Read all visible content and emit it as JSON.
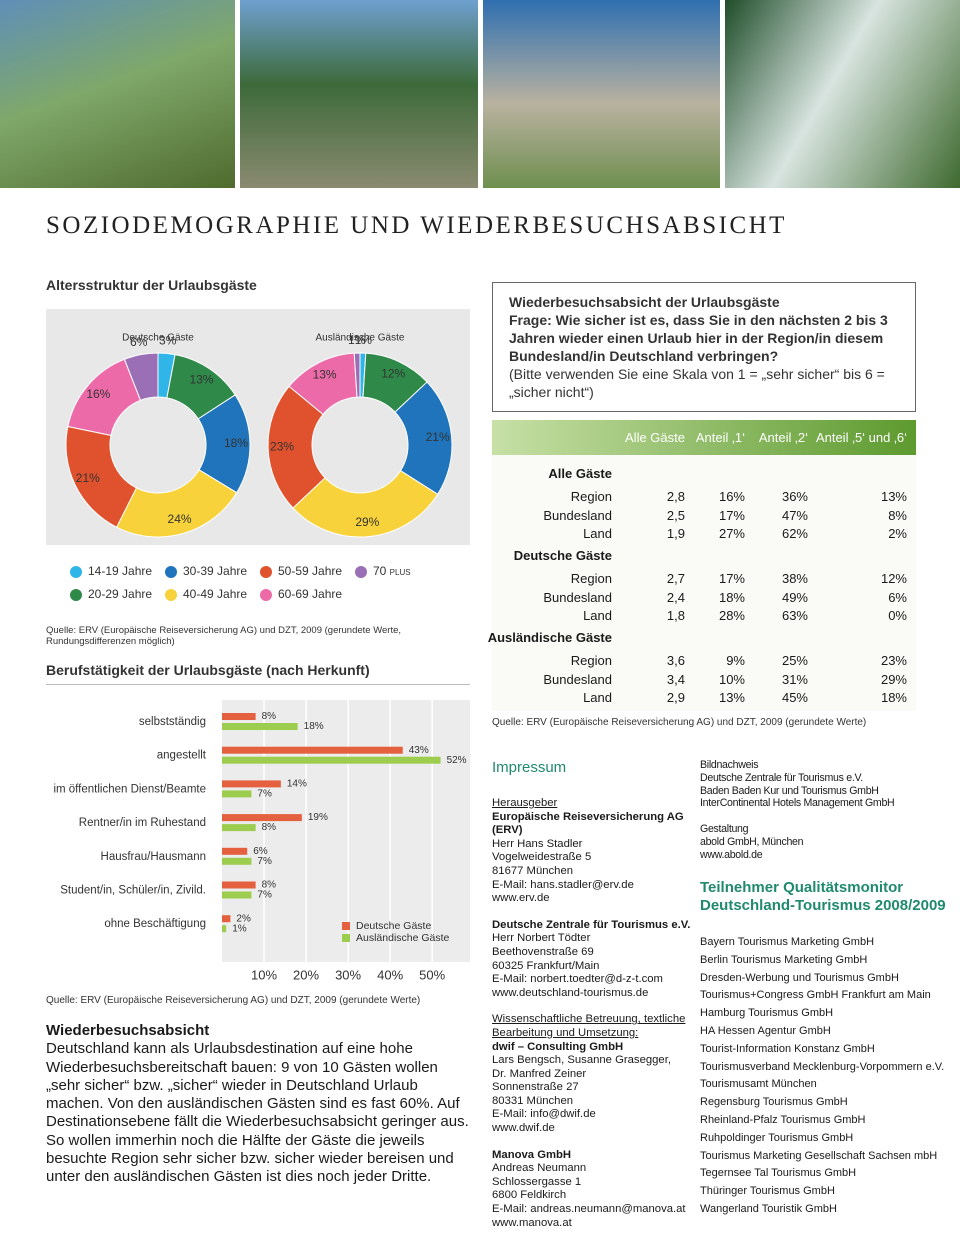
{
  "page_title": "SOZIODEMOGRAPHIE UND WIEDERBESUCHSABSICHT",
  "age_structure": {
    "title": "Altersstruktur der Urlaubsgäste",
    "source": "Quelle: ERV (Europäische Reiseversicherung AG) und DZT, 2009 (gerundete Werte, Rundungsdifferenzen möglich)"
  },
  "occupation": {
    "title": "Berufstätigkeit der Urlaubsgäste (nach Herkunft)",
    "source": "Quelle: ERV (Europäische Reiseversicherung AG) und DZT, 2009 (gerundete Werte)"
  },
  "chart_data": [
    {
      "type": "pie",
      "donut": true,
      "title": "Deutsche Gäste",
      "categories": [
        "14-19 Jahre",
        "20-29 Jahre",
        "30-39 Jahre",
        "40-49 Jahre",
        "50-59 Jahre",
        "60-69 Jahre",
        "70 plus"
      ],
      "colors": [
        "#2fb5e8",
        "#2f8a4a",
        "#1f74bb",
        "#f7d23a",
        "#e0522d",
        "#ec6aa8",
        "#9a6fb5"
      ],
      "values": [
        3,
        13,
        18,
        24,
        21,
        16,
        6
      ],
      "value_labels": [
        "3%",
        "13%",
        "18%",
        "24%",
        "21%",
        "16%",
        "6%"
      ]
    },
    {
      "type": "pie",
      "donut": true,
      "title": "Ausländische Gäste",
      "categories": [
        "14-19 Jahre",
        "20-29 Jahre",
        "30-39 Jahre",
        "40-49 Jahre",
        "50-59 Jahre",
        "60-69 Jahre",
        "70 plus"
      ],
      "colors": [
        "#2fb5e8",
        "#2f8a4a",
        "#1f74bb",
        "#f7d23a",
        "#e0522d",
        "#ec6aa8",
        "#9a6fb5"
      ],
      "values": [
        1,
        12,
        21,
        29,
        23,
        13,
        1
      ],
      "value_labels": [
        "1%",
        "12%",
        "21%",
        "29%",
        "23%",
        "13%",
        "1%"
      ]
    },
    {
      "type": "bar",
      "orientation": "horizontal",
      "categories": [
        "selbstständig",
        "angestellt",
        "im öffentlichen Dienst/Beamte",
        "Rentner/in im Ruhestand",
        "Hausfrau/Hausmann",
        "Student/in, Schüler/in, Zivild.",
        "ohne Beschäftigung"
      ],
      "series": [
        {
          "name": "Deutsche Gäste",
          "color": "#e5603f",
          "values": [
            8,
            43,
            14,
            19,
            6,
            8,
            2
          ],
          "value_labels": [
            "8%",
            "43%",
            "14%",
            "19%",
            "6%",
            "8%",
            "2%"
          ]
        },
        {
          "name": "Ausländische Gäste",
          "color": "#9ccd4f",
          "values": [
            18,
            52,
            7,
            8,
            7,
            7,
            1
          ],
          "value_labels": [
            "18%",
            "52%",
            "7%",
            "8%",
            "7%",
            "7%",
            "1%"
          ]
        }
      ],
      "xlim": [
        0,
        59
      ],
      "xticks": [
        {
          "value": 10,
          "label": "10%"
        },
        {
          "value": 20,
          "label": "20%"
        },
        {
          "value": 30,
          "label": "30%"
        },
        {
          "value": 40,
          "label": "40%"
        },
        {
          "value": 50,
          "label": "50%"
        }
      ],
      "grid": true
    }
  ],
  "revisit": {
    "title": "Wiederbesuchsabsicht der Urlaubsgäste",
    "question": "Frage: Wie sicher ist es, dass Sie in den nächsten 2 bis 3 Jahren wieder einen Urlaub hier in der Region/in diesem Bundesland/in Deutschland verbringen?",
    "note": "(Bitte verwenden Sie eine Skala von 1 = „sehr sicher“ bis 6 = „sicher nicht“)",
    "columns": [
      "Alle Gäste",
      "Anteil ‚1‘",
      "Anteil ‚2‘",
      "Anteil ‚5‘ und ‚6‘"
    ],
    "groups": [
      {
        "name": "Alle Gäste",
        "rows": [
          [
            "Region",
            "2,8",
            "16%",
            "36%",
            "13%"
          ],
          [
            "Bundesland",
            "2,5",
            "17%",
            "47%",
            "8%"
          ],
          [
            "Land",
            "1,9",
            "27%",
            "62%",
            "2%"
          ]
        ]
      },
      {
        "name": "Deutsche Gäste",
        "rows": [
          [
            "Region",
            "2,7",
            "17%",
            "38%",
            "12%"
          ],
          [
            "Bundesland",
            "2,4",
            "18%",
            "49%",
            "6%"
          ],
          [
            "Land",
            "1,8",
            "28%",
            "63%",
            "0%"
          ]
        ]
      },
      {
        "name": "Ausländische Gäste",
        "rows": [
          [
            "Region",
            "3,6",
            "9%",
            "25%",
            "23%"
          ],
          [
            "Bundesland",
            "3,4",
            "10%",
            "31%",
            "29%"
          ],
          [
            "Land",
            "2,9",
            "13%",
            "45%",
            "18%"
          ]
        ]
      }
    ],
    "source": "Quelle: ERV (Europäische Reiseversicherung AG) und DZT, 2009 (gerundete Werte)"
  },
  "summary": {
    "title": "Wiederbesuchsabsicht",
    "text": "Deutschland kann als Urlaubsdestination auf eine hohe Wiederbesuchsbereitschaft bauen: 9 von 10 Gästen wollen „sehr sicher“ bzw. „sicher“ wieder in Deutschland Urlaub machen. Von den ausländischen Gästen sind es fast 60%. Auf Destinationsebene fällt die Wiederbesuchsabsicht geringer aus. So wollen immerhin noch die Hälfte der Gäste die jeweils besuchte Region sehr sicher bzw. sicher wieder bereisen und unter den ausländischen Gästen ist dies noch jeder Dritte."
  },
  "impressum": {
    "title": "Impressum",
    "blocks": [
      {
        "label": "Herausgeber",
        "lines": [
          "Europäische Reiseversicherung AG (ERV)",
          "Herr Hans Stadler",
          "Vogelweidestraße 5",
          "81677 München",
          "E-Mail: hans.stadler@erv.de",
          "www.erv.de"
        ]
      },
      {
        "lines": [
          "Deutsche Zentrale für Tourismus e.V.",
          "Herr Norbert Tödter",
          "Beethovenstraße 69",
          "60325 Frankfurt/Main",
          "E-Mail: norbert.toedter@d-z-t.com",
          "www.deutschland-tourismus.de"
        ]
      },
      {
        "label": "Wissenschaftliche Betreuung, textliche Bearbeitung und Umsetzung:",
        "lines": [
          "dwif – Consulting GmbH",
          "Lars Bengsch, Susanne Grasegger,",
          "Dr. Manfred Zeiner",
          "Sonnenstraße 27",
          "80331 München",
          "E-Mail: info@dwif.de",
          "www.dwif.de"
        ]
      },
      {
        "lines": [
          "Manova GmbH",
          "Andreas Neumann",
          "Schlossergasse 1",
          "6800 Feldkirch",
          "E-Mail: andreas.neumann@manova.at",
          "www.manova.at"
        ]
      }
    ]
  },
  "credits": {
    "blocks": [
      {
        "title": "Bildnachweis",
        "lines": [
          "Deutsche Zentrale für Tourismus e.V.",
          "Baden Baden Kur und Tourismus GmbH",
          "InterContinental Hotels Management GmbH"
        ]
      },
      {
        "title": "Gestaltung",
        "lines": [
          "abold GmbH, München",
          "www.abold.de"
        ]
      }
    ]
  },
  "participants": {
    "title": "Teilnehmer Qualitätsmonitor Deutschland-Tourismus 2008/2009",
    "items": [
      "Bayern Tourismus Marketing GmbH",
      "Berlin Tourismus Marketing GmbH",
      "Dresden-Werbung und Tourismus GmbH",
      "Tourismus+Congress GmbH Frankfurt am Main",
      "Hamburg Tourismus GmbH",
      "HA Hessen Agentur GmbH",
      "Tourist-Information Konstanz GmbH",
      "Tourismusverband Mecklenburg-Vorpommern e.V.",
      "Tourismusamt München",
      "Regensburg Tourismus GmbH",
      "Rheinland-Pfalz Tourismus GmbH",
      "Ruhpoldinger Tourismus GmbH",
      "Tourismus Marketing Gesellschaft Sachsen mbH",
      "Tegernsee Tal Tourismus GmbH",
      "Thüringer Tourismus GmbH",
      "Wangerland Touristik GmbH"
    ]
  }
}
